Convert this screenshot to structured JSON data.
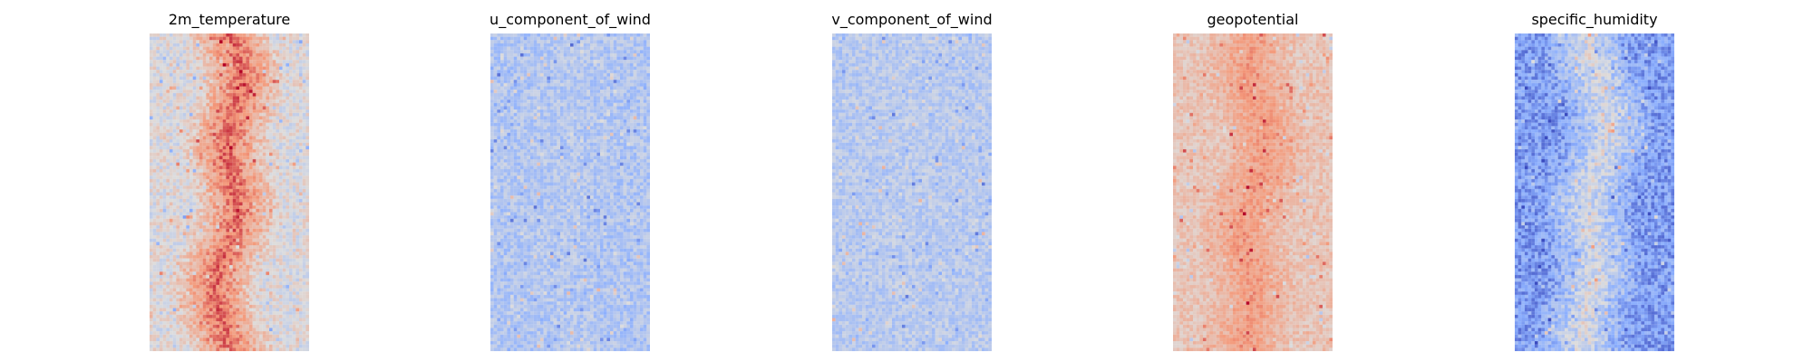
{
  "figure": {
    "colormap": "coolwarm",
    "colormap_stops": [
      "#3b4cc0",
      "#8db0fe",
      "#dddddd",
      "#f49a7b",
      "#b40426"
    ],
    "grid_size": {
      "cols": 48,
      "rows": 96
    },
    "axes_visible": false
  },
  "chart_data": [
    {
      "type": "heatmap",
      "title": "2m_temperature",
      "pattern": "warm-centre-band",
      "value_range": [
        0,
        1
      ],
      "profile_mean": {
        "edge": 0.5,
        "centre": 0.84
      },
      "noise_level": 0.1
    },
    {
      "type": "heatmap",
      "title": "u_component_of_wind",
      "pattern": "diffuse-blue-with-warm-streaks",
      "value_range": [
        0,
        1
      ],
      "profile_mean": {
        "edge": 0.36,
        "centre": 0.38
      },
      "noise_level": 0.09
    },
    {
      "type": "heatmap",
      "title": "v_component_of_wind",
      "pattern": "light-blue-mottled",
      "value_range": [
        0,
        1
      ],
      "profile_mean": {
        "edge": 0.38,
        "centre": 0.39
      },
      "noise_level": 0.08
    },
    {
      "type": "heatmap",
      "title": "geopotential",
      "pattern": "broad-warm-band",
      "value_range": [
        0,
        1
      ],
      "profile_mean": {
        "edge": 0.6,
        "centre": 0.74
      },
      "noise_level": 0.07
    },
    {
      "type": "heatmap",
      "title": "specific_humidity",
      "pattern": "cool-field-with-warm-centre-streak",
      "value_range": [
        0,
        1
      ],
      "profile_mean": {
        "edge": 0.2,
        "centre": 0.48
      },
      "noise_level": 0.12
    }
  ]
}
